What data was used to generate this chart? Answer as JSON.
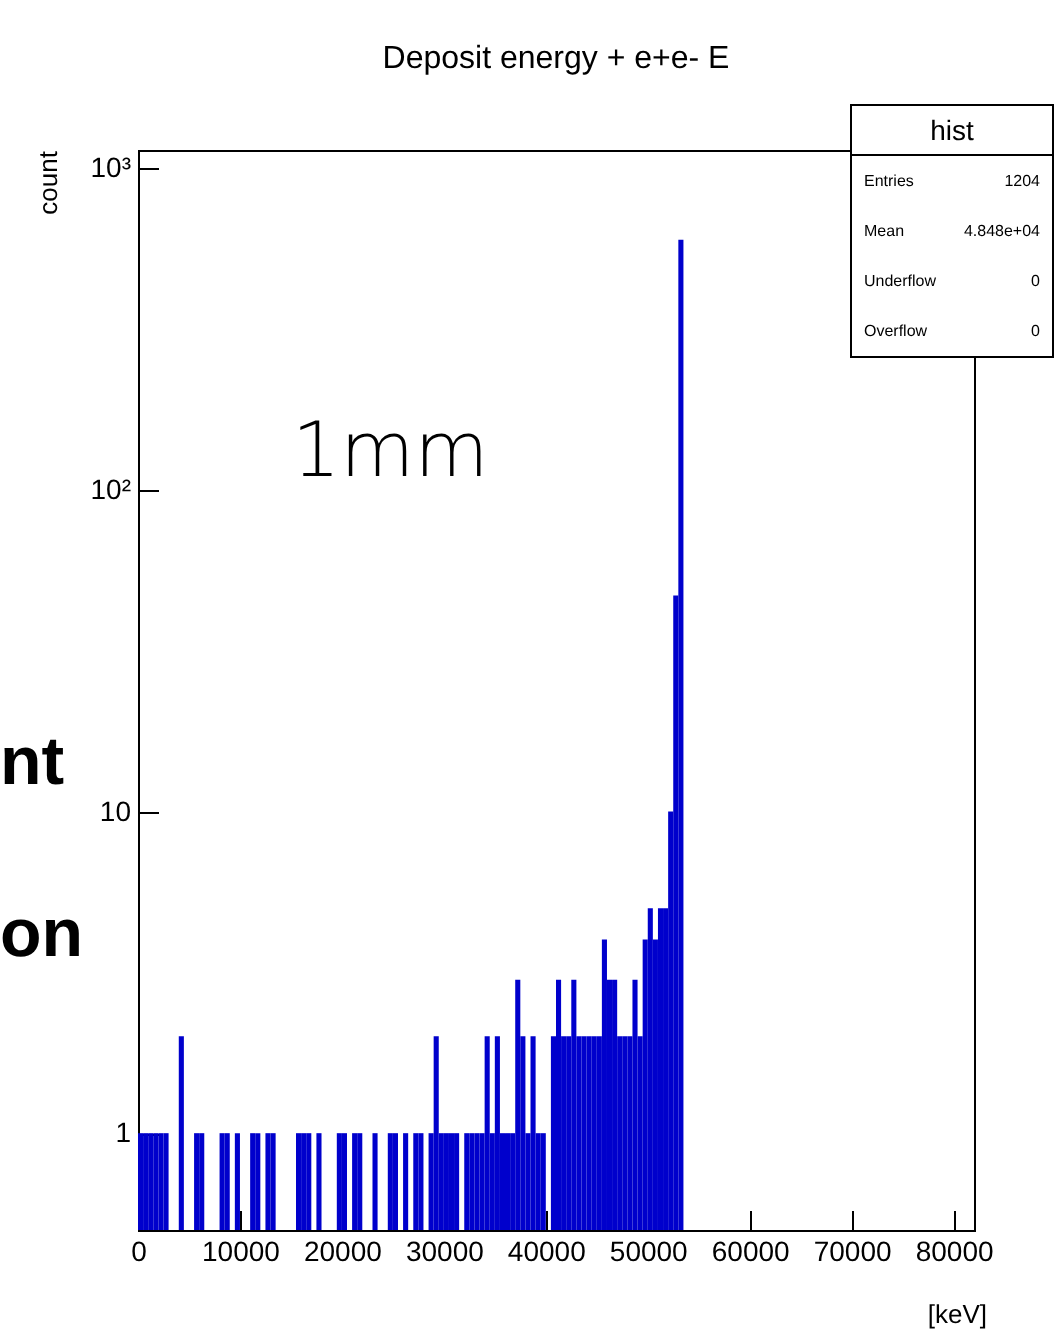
{
  "chart_data": {
    "type": "histogram",
    "title": "Deposit energy + e+e- E",
    "xlabel": "[keV]",
    "ylabel": "count",
    "bins": [
      0,
      500,
      1000,
      1500,
      2000,
      2500,
      3000,
      3500,
      4000,
      4500,
      5000,
      5500,
      6000,
      6500,
      7000,
      7500,
      8000,
      8500,
      9000,
      9500,
      10000,
      10500,
      11000,
      11500,
      12000,
      12500,
      13000,
      13500,
      14000,
      14500,
      15000,
      15500,
      16000,
      16500,
      17000,
      17500,
      18000,
      18500,
      19000,
      19500,
      20000,
      20500,
      21000,
      21500,
      22000,
      22500,
      23000,
      23500,
      24000,
      24500,
      25000,
      25500,
      26000,
      26500,
      27000,
      27500,
      28000,
      28500,
      29000,
      29500,
      30000,
      30500,
      31000,
      31500,
      32000,
      32500,
      33000,
      33500,
      34000,
      34500,
      35000,
      35500,
      36000,
      36500,
      37000,
      37500,
      38000,
      38500,
      39000,
      39500,
      40000,
      40500,
      41000,
      41500,
      42000,
      42500,
      43000,
      43500,
      44000,
      44500,
      45000,
      45500,
      46000,
      46500,
      47000,
      47500,
      48000,
      48500,
      49000,
      49500,
      50000,
      50500,
      51000,
      51500,
      52000,
      52500,
      53000,
      53500,
      54000,
      54500,
      55000,
      55500,
      56000,
      56500,
      57000,
      57500,
      58000,
      58500,
      59000,
      59500,
      60000,
      60500,
      61000,
      61500,
      62000,
      62500,
      63000,
      63500,
      64000,
      64500,
      65000,
      65500,
      66000,
      66500,
      67000,
      67500,
      68000,
      68500,
      69000,
      69500,
      70000,
      70500,
      71000,
      71500,
      72000,
      72500,
      73000,
      73500,
      74000,
      74500,
      75000,
      75500,
      76000,
      76500,
      77000,
      77500,
      78000,
      78500,
      79000,
      79500,
      80000
    ],
    "values": [
      1,
      1,
      1,
      1,
      1,
      1,
      null,
      null,
      2,
      null,
      null,
      1,
      1,
      null,
      null,
      null,
      1,
      1,
      null,
      1,
      null,
      null,
      1,
      1,
      null,
      1,
      1,
      null,
      null,
      null,
      null,
      1,
      1,
      1,
      null,
      1,
      null,
      null,
      null,
      1,
      1,
      null,
      1,
      1,
      null,
      null,
      1,
      null,
      null,
      1,
      1,
      null,
      1,
      null,
      1,
      1,
      null,
      1,
      2,
      1,
      1,
      1,
      1,
      null,
      1,
      1,
      1,
      1,
      2,
      1,
      2,
      1,
      1,
      1,
      3,
      2,
      1,
      2,
      1,
      1,
      null,
      2,
      3,
      2,
      2,
      3,
      2,
      2,
      2,
      2,
      2,
      4,
      3,
      3,
      2,
      2,
      2,
      3,
      2,
      4,
      5,
      4,
      5,
      5,
      10,
      47,
      600,
      null,
      null,
      null,
      null,
      null,
      null,
      null,
      null,
      null,
      null,
      null,
      null,
      null,
      null,
      null,
      null,
      null,
      null,
      null,
      null,
      null,
      null,
      null,
      null,
      null,
      null,
      null,
      null,
      null,
      null,
      null,
      null,
      null,
      null,
      null,
      null,
      null,
      null,
      null,
      null,
      null,
      null,
      null,
      null,
      null,
      null,
      null,
      null,
      null,
      null,
      null,
      null,
      null
    ],
    "color": "#0000cc",
    "log": "y",
    "xlim": [
      0,
      82000
    ],
    "ylim": [
      0.5,
      1140
    ],
    "xticks": [
      0,
      10000,
      20000,
      30000,
      40000,
      50000,
      60000,
      70000,
      80000
    ],
    "yticks": [
      1,
      10,
      {
        "value": 100,
        "label": "10²"
      },
      {
        "value": 1000,
        "label": "10³"
      }
    ],
    "grid": false,
    "annotations": [
      "1mm",
      "hist",
      "Entries",
      "1204",
      "Mean",
      "4.848e+04",
      "Underflow",
      "0",
      "Overflow",
      "0",
      "nt",
      "on"
    ]
  }
}
